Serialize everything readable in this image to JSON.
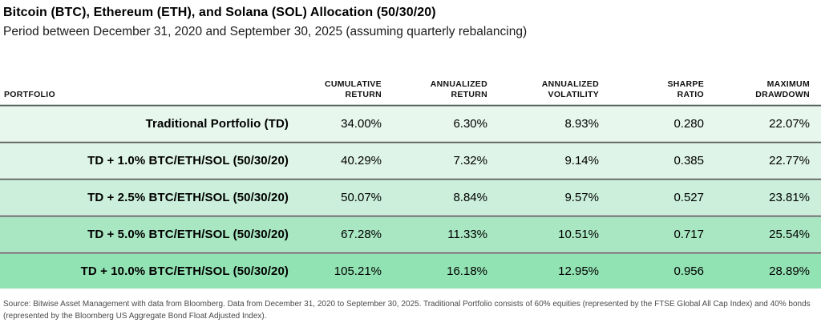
{
  "header": {
    "title": "Bitcoin (BTC), Ethereum (ETH), and Solana (SOL) Allocation (50/30/20)",
    "subtitle": "Period between December 31, 2020 and September 30, 2025 (assuming quarterly rebalancing)"
  },
  "table": {
    "header": {
      "portfolio": "PORTFOLIO",
      "cumulative_return": "CUMULATIVE\nRETURN",
      "annualized_return": "ANNUALIZED\nRETURN",
      "annualized_volatility": "ANNUALIZED\nVOLATILITY",
      "sharpe_ratio": "SHARPE\nRATIO",
      "maximum_drawdown": "MAXIMUM\nDRAWDOWN"
    },
    "rows": [
      {
        "label": "Traditional Portfolio (TD)",
        "values": [
          "34.00%",
          "6.30%",
          "8.93%",
          "0.280",
          "22.07%"
        ],
        "bg": "#e7f7ee"
      },
      {
        "label": "TD + 1.0% BTC/ETH/SOL (50/30/20)",
        "values": [
          "40.29%",
          "7.32%",
          "9.14%",
          "0.385",
          "22.77%"
        ],
        "bg": "#def4e8"
      },
      {
        "label": "TD + 2.5% BTC/ETH/SOL (50/30/20)",
        "values": [
          "50.07%",
          "8.84%",
          "9.57%",
          "0.527",
          "23.81%"
        ],
        "bg": "#cbefdb"
      },
      {
        "label": "TD + 5.0% BTC/ETH/SOL (50/30/20)",
        "values": [
          "67.28%",
          "11.33%",
          "10.51%",
          "0.717",
          "25.54%"
        ],
        "bg": "#a9e7c3"
      },
      {
        "label": "TD + 10.0% BTC/ETH/SOL (50/30/20)",
        "values": [
          "105.21%",
          "16.18%",
          "12.95%",
          "0.956",
          "28.89%"
        ],
        "bg": "#92e3b3"
      }
    ]
  },
  "footer": {
    "source": "Source: Bitwise Asset Management with data from Bloomberg. Data from December 31, 2020 to September 30, 2025. Traditional Portfolio consists of 60% equities (represented by the FTSE Global All Cap Index) and 40% bonds (represented by the Bloomberg US Aggregate Bond Float Adjusted Index)."
  },
  "colors": {
    "row_scale": [
      "#e7f7ee",
      "#def4e8",
      "#cbefdb",
      "#a9e7c3",
      "#92e3b3"
    ],
    "separator_dark": "#4f5b56",
    "separator_light": "#c9d1cd",
    "text_primary": "#000000",
    "text_footer": "#4a4a4a"
  },
  "chart_data": {
    "type": "table",
    "title": "Bitcoin (BTC), Ethereum (ETH), and Solana (SOL) Allocation (50/30/20)",
    "subtitle": "Period between December 31, 2020 and September 30, 2025 (assuming quarterly rebalancing)",
    "columns": [
      "Portfolio",
      "Cumulative Return",
      "Annualized Return",
      "Annualized Volatility",
      "Sharpe Ratio",
      "Maximum Drawdown"
    ],
    "rows": [
      [
        "Traditional Portfolio (TD)",
        "34.00%",
        "6.30%",
        "8.93%",
        "0.280",
        "22.07%"
      ],
      [
        "TD + 1.0% BTC/ETH/SOL (50/30/20)",
        "40.29%",
        "7.32%",
        "9.14%",
        "0.385",
        "22.77%"
      ],
      [
        "TD + 2.5% BTC/ETH/SOL (50/30/20)",
        "50.07%",
        "8.84%",
        "9.57%",
        "0.527",
        "23.81%"
      ],
      [
        "TD + 5.0% BTC/ETH/SOL (50/30/20)",
        "67.28%",
        "11.33%",
        "10.51%",
        "0.717",
        "25.54%"
      ],
      [
        "TD + 10.0% BTC/ETH/SOL (50/30/20)",
        "105.21%",
        "16.18%",
        "12.95%",
        "0.956",
        "28.89%"
      ]
    ],
    "notes": "Source: Bitwise Asset Management with data from Bloomberg. Data from December 31, 2020 to September 30, 2025. Traditional Portfolio consists of 60% equities (represented by the FTSE Global All Cap Index) and 40% bonds (represented by the Bloomberg US Aggregate Bond Float Adjusted Index)."
  }
}
